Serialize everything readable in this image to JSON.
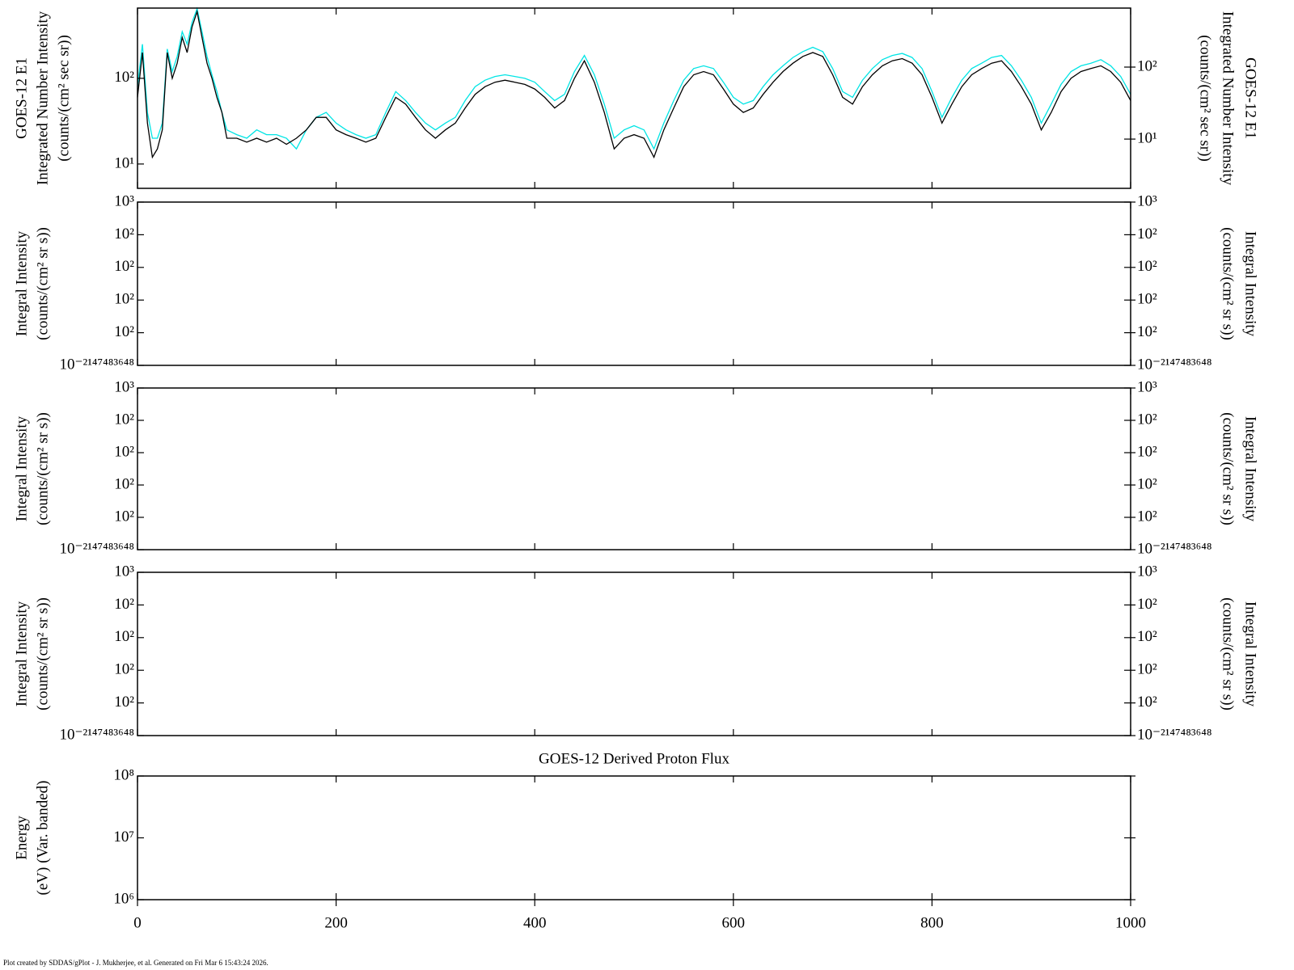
{
  "chart_data": [
    {
      "type": "line",
      "ylabel": [
        "GOES-12 E1",
        "Integrated Number Intensity",
        "(counts/(cm² sec sr))"
      ],
      "y2label": [
        "GOES-12 E1",
        "Integrated Number Intensity",
        "(counts/(cm² sec sr))"
      ],
      "log": true,
      "xlim": [
        0,
        1000
      ],
      "ylim": [
        5.2,
        660
      ],
      "yticks": [
        {
          "value": 10,
          "label": "10¹"
        },
        {
          "value": 100,
          "label": "10²"
        }
      ],
      "y2lim": [
        2.07,
        660
      ],
      "y2ticks": [
        {
          "value": 10,
          "label": "10¹"
        },
        {
          "value": 100,
          "label": "10²"
        }
      ],
      "x": [
        0,
        5,
        10,
        15,
        20,
        25,
        30,
        35,
        40,
        45,
        50,
        55,
        60,
        65,
        70,
        75,
        80,
        85,
        90,
        100,
        110,
        120,
        130,
        140,
        150,
        160,
        170,
        180,
        190,
        200,
        210,
        220,
        230,
        240,
        250,
        260,
        270,
        280,
        290,
        300,
        310,
        320,
        330,
        340,
        350,
        360,
        370,
        380,
        390,
        400,
        410,
        420,
        430,
        440,
        450,
        460,
        470,
        480,
        490,
        500,
        510,
        520,
        530,
        540,
        550,
        560,
        570,
        580,
        590,
        600,
        610,
        620,
        630,
        640,
        650,
        660,
        670,
        680,
        690,
        700,
        710,
        720,
        730,
        740,
        750,
        760,
        770,
        780,
        790,
        800,
        810,
        820,
        830,
        840,
        850,
        860,
        870,
        880,
        890,
        900,
        910,
        920,
        930,
        940,
        950,
        960,
        970,
        980,
        990,
        1000
      ],
      "series": [
        {
          "color": "#00e5e5",
          "values": [
            80,
            250,
            40,
            20,
            20,
            30,
            220,
            120,
            180,
            350,
            250,
            450,
            650,
            350,
            180,
            110,
            70,
            40,
            25,
            22,
            20,
            25,
            22,
            22,
            20,
            15,
            25,
            35,
            40,
            30,
            25,
            22,
            20,
            22,
            40,
            70,
            55,
            40,
            30,
            25,
            30,
            35,
            55,
            80,
            95,
            105,
            110,
            105,
            100,
            90,
            70,
            55,
            65,
            120,
            185,
            110,
            50,
            20,
            25,
            28,
            25,
            15,
            30,
            55,
            95,
            130,
            140,
            130,
            90,
            60,
            50,
            55,
            80,
            110,
            140,
            175,
            205,
            230,
            205,
            130,
            70,
            60,
            95,
            130,
            165,
            185,
            195,
            175,
            130,
            70,
            35,
            60,
            95,
            130,
            150,
            175,
            185,
            140,
            95,
            60,
            30,
            50,
            85,
            120,
            140,
            150,
            165,
            140,
            105,
            65
          ]
        },
        {
          "color": "#000000",
          "values": [
            60,
            200,
            30,
            12,
            15,
            25,
            200,
            100,
            150,
            300,
            200,
            400,
            600,
            300,
            150,
            100,
            60,
            40,
            20,
            20,
            18,
            20,
            18,
            20,
            17,
            20,
            25,
            35,
            35,
            25,
            22,
            20,
            18,
            20,
            35,
            60,
            50,
            35,
            25,
            20,
            25,
            30,
            45,
            65,
            80,
            90,
            95,
            90,
            85,
            75,
            60,
            45,
            55,
            100,
            160,
            90,
            40,
            15,
            20,
            22,
            20,
            12,
            25,
            45,
            80,
            110,
            120,
            110,
            75,
            50,
            40,
            45,
            65,
            90,
            120,
            150,
            180,
            200,
            180,
            110,
            60,
            50,
            80,
            110,
            140,
            160,
            170,
            150,
            110,
            60,
            30,
            50,
            80,
            110,
            130,
            150,
            160,
            120,
            80,
            50,
            25,
            40,
            70,
            100,
            120,
            130,
            140,
            120,
            90,
            55
          ]
        }
      ]
    },
    {
      "type": "line",
      "ylabel": [
        "Integral Intensity",
        "(counts/(cm² sr s))"
      ],
      "y2label": [
        "Integral Intensity",
        "(counts/(cm² sr s))"
      ],
      "xlim": [
        0,
        1000
      ],
      "ylim": [
        0,
        5
      ],
      "yticks": [
        {
          "value": 0,
          "label": "10⁻²¹⁴⁷⁴⁸³⁶⁴⁸"
        },
        {
          "value": 1,
          "label": "10²"
        },
        {
          "value": 2,
          "label": "10²"
        },
        {
          "value": 3,
          "label": "10²"
        },
        {
          "value": 4,
          "label": "10²"
        },
        {
          "value": 5,
          "label": "10³"
        }
      ],
      "y2lim": [
        0,
        5
      ],
      "y2ticks": [
        {
          "value": 0,
          "label": "10⁻²¹⁴⁷⁴⁸³⁶⁴⁸"
        },
        {
          "value": 1,
          "label": "10²"
        },
        {
          "value": 2,
          "label": "10²"
        },
        {
          "value": 3,
          "label": "10²"
        },
        {
          "value": 4,
          "label": "10²"
        },
        {
          "value": 5,
          "label": "10³"
        }
      ],
      "series": []
    },
    {
      "type": "line",
      "ylabel": [
        "Integral Intensity",
        "(counts/(cm² sr s))"
      ],
      "y2label": [
        "Integral Intensity",
        "(counts/(cm² sr s))"
      ],
      "xlim": [
        0,
        1000
      ],
      "ylim": [
        0,
        5
      ],
      "yticks": [
        {
          "value": 0,
          "label": "10⁻²¹⁴⁷⁴⁸³⁶⁴⁸"
        },
        {
          "value": 1,
          "label": "10²"
        },
        {
          "value": 2,
          "label": "10²"
        },
        {
          "value": 3,
          "label": "10²"
        },
        {
          "value": 4,
          "label": "10²"
        },
        {
          "value": 5,
          "label": "10³"
        }
      ],
      "y2lim": [
        0,
        5
      ],
      "y2ticks": [
        {
          "value": 0,
          "label": "10⁻²¹⁴⁷⁴⁸³⁶⁴⁸"
        },
        {
          "value": 1,
          "label": "10²"
        },
        {
          "value": 2,
          "label": "10²"
        },
        {
          "value": 3,
          "label": "10²"
        },
        {
          "value": 4,
          "label": "10²"
        },
        {
          "value": 5,
          "label": "10³"
        }
      ],
      "series": []
    },
    {
      "type": "line",
      "ylabel": [
        "Integral Intensity",
        "(counts/(cm² sr s))"
      ],
      "y2label": [
        "Integral Intensity",
        "(counts/(cm² sr s))"
      ],
      "xlim": [
        0,
        1000
      ],
      "ylim": [
        0,
        5
      ],
      "yticks": [
        {
          "value": 0,
          "label": "10⁻²¹⁴⁷⁴⁸³⁶⁴⁸"
        },
        {
          "value": 1,
          "label": "10²"
        },
        {
          "value": 2,
          "label": "10²"
        },
        {
          "value": 3,
          "label": "10²"
        },
        {
          "value": 4,
          "label": "10²"
        },
        {
          "value": 5,
          "label": "10³"
        }
      ],
      "y2lim": [
        0,
        5
      ],
      "y2ticks": [
        {
          "value": 0,
          "label": "10⁻²¹⁴⁷⁴⁸³⁶⁴⁸"
        },
        {
          "value": 1,
          "label": "10²"
        },
        {
          "value": 2,
          "label": "10²"
        },
        {
          "value": 3,
          "label": "10²"
        },
        {
          "value": 4,
          "label": "10²"
        },
        {
          "value": 5,
          "label": "10³"
        }
      ],
      "series": []
    },
    {
      "type": "line",
      "title": "GOES-12 Derived Proton Flux",
      "ylabel": [
        "Energy",
        "(eV) (Var. banded)"
      ],
      "log": true,
      "xlim": [
        0,
        1000
      ],
      "xticks": [
        0,
        200,
        400,
        600,
        800,
        1000
      ],
      "ylim": [
        1000000,
        100000000
      ],
      "yticks": [
        {
          "value": 1000000,
          "label": "10⁶"
        },
        {
          "value": 10000000,
          "label": "10⁷"
        },
        {
          "value": 100000000,
          "label": "10⁸"
        }
      ],
      "series": []
    }
  ],
  "footer": "Plot created by SDDAS/gPlot - J. Mukherjee, et al.  Generated on Fri Mar 6 15:43:24 2026."
}
